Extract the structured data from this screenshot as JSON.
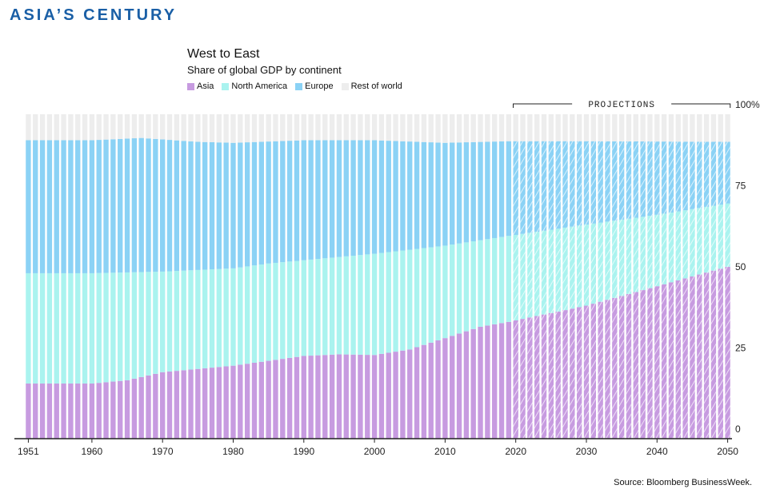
{
  "header": {
    "title": "ASIA’S CENTURY"
  },
  "source": "Source:  Bloomberg BusinessWeek.",
  "chart_data": {
    "type": "bar",
    "stacked": true,
    "title": "West to East",
    "subtitle": "Share of global GDP by continent",
    "legend_position": "top-left",
    "colors": {
      "asia": "#c79be0",
      "north_america": "#aaf3ef",
      "europe": "#8bd2f5",
      "rest": "#ededed"
    },
    "x_start": 1951,
    "x_end": 2050,
    "x_ticks": [
      "1951",
      "1960",
      "1970",
      "1980",
      "1990",
      "2000",
      "2010",
      "2020",
      "2030",
      "2040",
      "2050"
    ],
    "y_ticks": [
      "0",
      "25",
      "50",
      "75",
      "100%"
    ],
    "ylim": [
      0,
      100
    ],
    "projection_start": 2020,
    "projection_label": "PROJECTIONS",
    "anchors": {
      "asia": [
        [
          1951,
          17
        ],
        [
          1960,
          17
        ],
        [
          1965,
          18
        ],
        [
          1970,
          20.5
        ],
        [
          1975,
          21.5
        ],
        [
          1980,
          22.5
        ],
        [
          1985,
          24
        ],
        [
          1990,
          25.5
        ],
        [
          1995,
          26
        ],
        [
          2000,
          25.8
        ],
        [
          2005,
          27.5
        ],
        [
          2010,
          31
        ],
        [
          2015,
          34.5
        ],
        [
          2019,
          36
        ],
        [
          2030,
          41
        ],
        [
          2040,
          47
        ],
        [
          2050,
          53
        ]
      ],
      "north_america_top": [
        [
          1951,
          51
        ],
        [
          1960,
          51
        ],
        [
          1970,
          51.5
        ],
        [
          1980,
          52.5
        ],
        [
          1985,
          54
        ],
        [
          1990,
          55
        ],
        [
          2000,
          57
        ],
        [
          2010,
          59.5
        ],
        [
          2019,
          62.5
        ],
        [
          2030,
          66
        ],
        [
          2040,
          69
        ],
        [
          2050,
          72.5
        ]
      ],
      "europe_top": [
        [
          1951,
          92
        ],
        [
          1960,
          92
        ],
        [
          1967,
          92.7
        ],
        [
          1975,
          91.5
        ],
        [
          1980,
          91.2
        ],
        [
          1990,
          92
        ],
        [
          2000,
          92
        ],
        [
          2010,
          91.2
        ],
        [
          2019,
          91.7
        ],
        [
          2030,
          91.7
        ],
        [
          2050,
          91.5
        ]
      ]
    },
    "series": [
      {
        "name": "Asia"
      },
      {
        "name": "North America"
      },
      {
        "name": "Europe"
      },
      {
        "name": "Rest of world"
      }
    ]
  }
}
